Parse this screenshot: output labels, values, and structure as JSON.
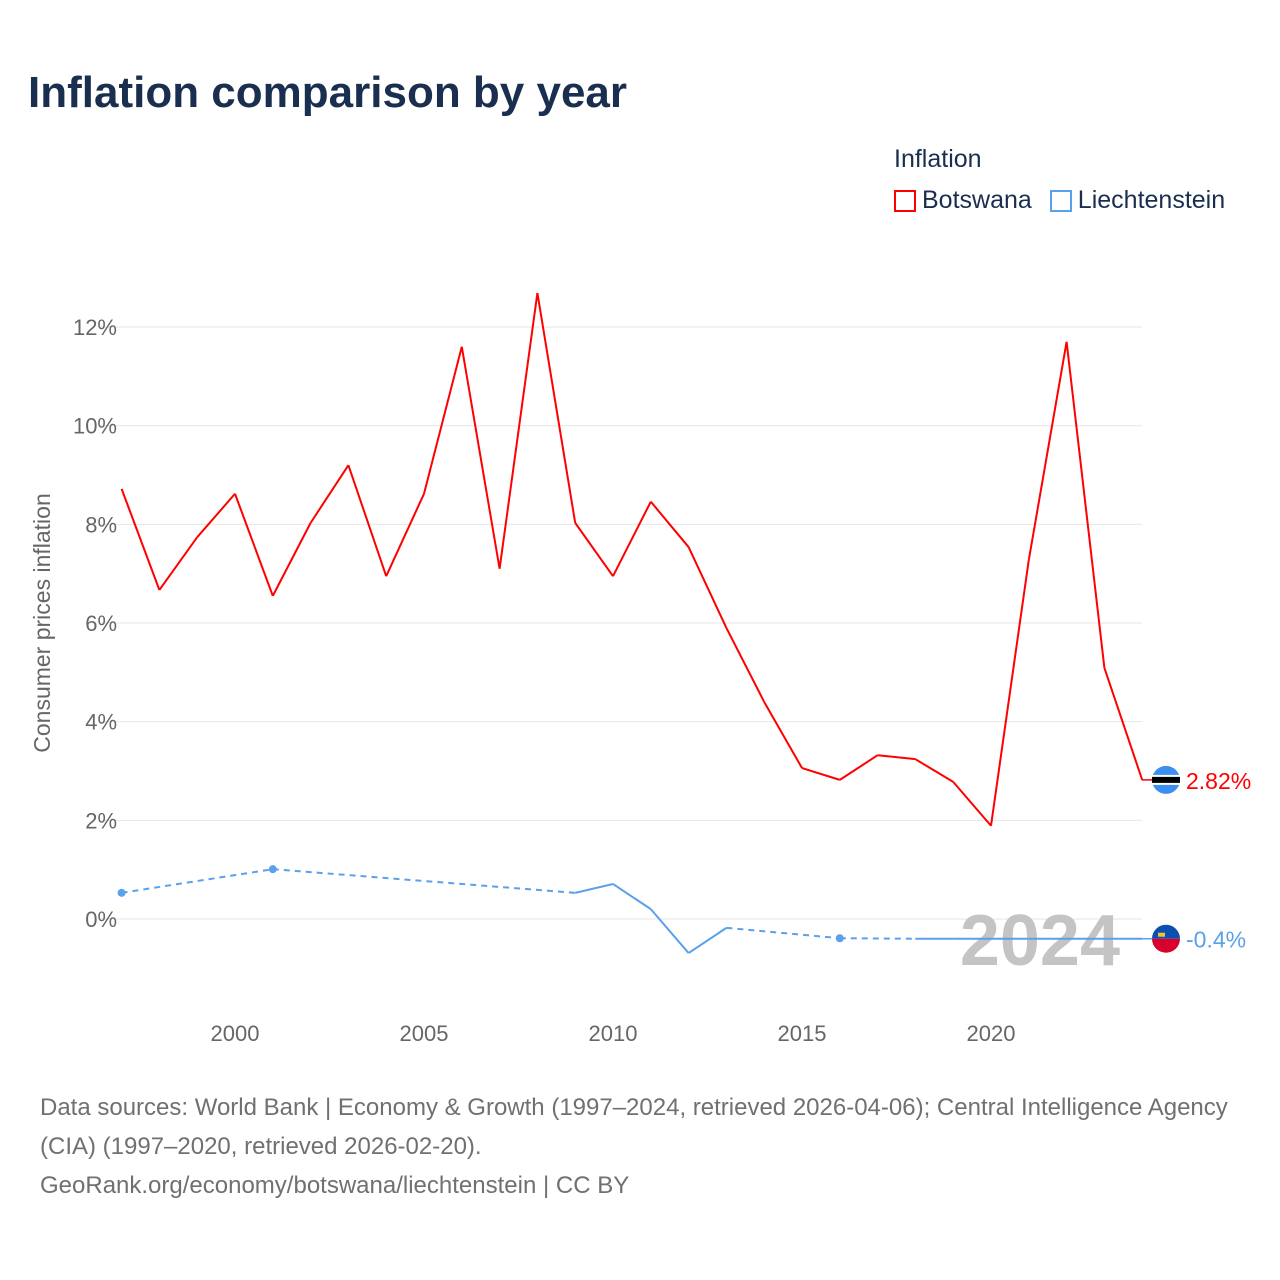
{
  "title": "Inflation comparison by year",
  "legend": {
    "title": "Inflation",
    "items": [
      {
        "label": "Botswana",
        "color": "#ff0000"
      },
      {
        "label": "Liechtenstein",
        "color": "#5aa0ea"
      }
    ]
  },
  "year_watermark": "2024",
  "footer": {
    "sources": "Data sources: World Bank | Economy & Growth (1997–2024, retrieved 2026-04-06); Central Intelligence Agency (CIA) (1997–2020, retrieved 2026-02-20).",
    "link": "GeoRank.org/economy/botswana/liechtenstein | CC BY"
  },
  "chart_data": {
    "type": "line",
    "title": "Inflation comparison by year",
    "xlabel": "",
    "ylabel": "Consumer prices inflation",
    "xlim": [
      1997,
      2024
    ],
    "ylim": [
      -1.5,
      13
    ],
    "x_ticks": [
      2000,
      2005,
      2010,
      2015,
      2020
    ],
    "y_ticks": [
      {
        "v": 0,
        "label": "0%"
      },
      {
        "v": 2,
        "label": "2%"
      },
      {
        "v": 4,
        "label": "4%"
      },
      {
        "v": 6,
        "label": "6%"
      },
      {
        "v": 8,
        "label": "8%"
      },
      {
        "v": 10,
        "label": "10%"
      },
      {
        "v": 12,
        "label": "12%"
      }
    ],
    "grid": true,
    "legend_position": "top-right",
    "series": [
      {
        "name": "Botswana",
        "color": "#ff0000",
        "end_label": "2.82%",
        "flag": "botswana-flag",
        "x": [
          1997,
          1998,
          1999,
          2000,
          2001,
          2002,
          2003,
          2004,
          2005,
          2006,
          2007,
          2008,
          2009,
          2010,
          2011,
          2012,
          2013,
          2014,
          2015,
          2016,
          2017,
          2018,
          2019,
          2020,
          2021,
          2022,
          2023,
          2024
        ],
        "y": [
          8.72,
          6.67,
          7.74,
          8.62,
          6.55,
          8.03,
          9.2,
          6.95,
          8.62,
          11.6,
          7.1,
          12.69,
          8.03,
          6.95,
          8.46,
          7.54,
          5.9,
          4.4,
          3.06,
          2.82,
          3.32,
          3.24,
          2.78,
          1.89,
          7.28,
          11.7,
          5.09,
          2.82
        ]
      },
      {
        "name": "Liechtenstein",
        "color": "#5aa0ea",
        "end_label": "-0.4%",
        "flag": "liechtenstein-flag",
        "x": [
          1997,
          2001,
          2009,
          2010,
          2011,
          2012,
          2013,
          2016,
          2018,
          2019,
          2020,
          2021,
          2022,
          2023,
          2024
        ],
        "y": [
          0.53,
          1.01,
          0.53,
          0.71,
          0.2,
          -0.69,
          -0.18,
          -0.39,
          -0.4,
          -0.4,
          -0.4,
          -0.4,
          -0.4,
          -0.4,
          -0.4
        ]
      }
    ]
  }
}
